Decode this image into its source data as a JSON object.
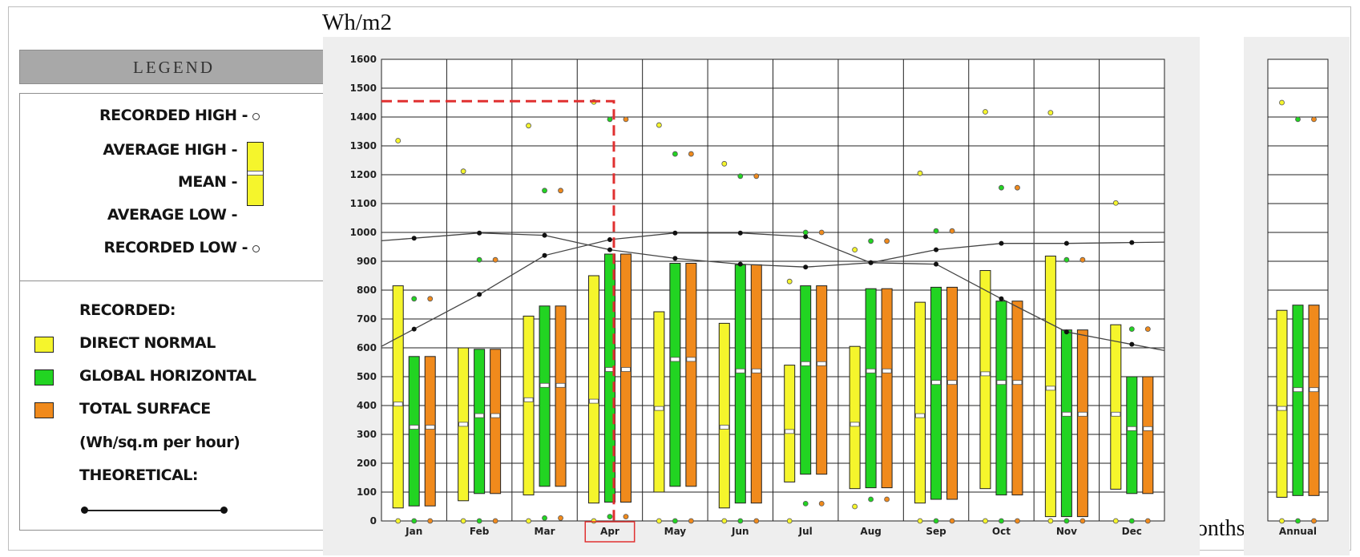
{
  "unit_label": "Wh/m2",
  "xlabel": "Months",
  "legend": {
    "title": "LEGEND",
    "recorded_high": "RECORDED HIGH -",
    "average_high": "AVERAGE HIGH -",
    "mean": "MEAN -",
    "average_low": "AVERAGE LOW -",
    "recorded_low": "RECORDED LOW -",
    "recorded_heading": "RECORDED:",
    "direct_normal": "DIRECT NORMAL",
    "global_horizontal": "GLOBAL HORIZONTAL",
    "total_surface": "TOTAL SURFACE",
    "units_note": "(Wh/sq.m per hour)",
    "theoretical": "THEORETICAL:"
  },
  "colors": {
    "direct_normal": "#f5f52c",
    "global_horizontal": "#22d422",
    "total_surface": "#f08a1c",
    "highlight": "#e03030",
    "panel_bg": "#eeeeee"
  },
  "chart_data": {
    "type": "bar",
    "ylim": [
      0,
      1600
    ],
    "yticks": [
      "0",
      "100",
      "200",
      "300",
      "400",
      "500",
      "600",
      "700",
      "800",
      "900",
      "1000",
      "1100",
      "1200",
      "1300",
      "1400",
      "1500",
      "1600"
    ],
    "categories": [
      "Jan",
      "Feb",
      "Mar",
      "Apr",
      "May",
      "Jun",
      "Jul",
      "Aug",
      "Sep",
      "Oct",
      "Nov",
      "Dec"
    ],
    "annual_category": "Annual",
    "highlighted_category": "Apr",
    "highlight_level": 1455,
    "series": [
      {
        "name": "DIRECT NORMAL",
        "color": "#f5f52c",
        "avg_high": [
          815,
          600,
          710,
          850,
          725,
          685,
          540,
          605,
          758,
          868,
          918,
          680
        ],
        "mean": [
          405,
          335,
          420,
          415,
          390,
          325,
          310,
          335,
          365,
          510,
          460,
          370
        ],
        "avg_low": [
          45,
          70,
          90,
          62,
          100,
          45,
          135,
          112,
          62,
          112,
          15,
          110
        ],
        "rec_high": [
          1318,
          1212,
          1370,
          1452,
          1372,
          1238,
          830,
          940,
          1205,
          1418,
          1415,
          1102
        ],
        "rec_low": [
          0,
          0,
          0,
          0,
          0,
          0,
          0,
          50,
          0,
          0,
          0,
          0
        ],
        "annual": {
          "avg_high": 730,
          "mean": 390,
          "avg_low": 82,
          "rec_high": 1450,
          "rec_low": 0
        }
      },
      {
        "name": "GLOBAL HORIZONTAL",
        "color": "#22d422",
        "avg_high": [
          570,
          595,
          745,
          925,
          893,
          888,
          815,
          805,
          810,
          762,
          662,
          500
        ],
        "mean": [
          325,
          365,
          470,
          525,
          560,
          520,
          545,
          520,
          480,
          480,
          370,
          320
        ],
        "avg_low": [
          52,
          95,
          120,
          65,
          120,
          62,
          162,
          115,
          75,
          90,
          15,
          95
        ],
        "rec_high": [
          770,
          905,
          1145,
          1392,
          1272,
          1195,
          1000,
          970,
          1005,
          1155,
          905,
          665
        ],
        "rec_low": [
          0,
          0,
          10,
          15,
          0,
          0,
          60,
          75,
          0,
          0,
          0,
          0
        ],
        "annual": {
          "avg_high": 748,
          "mean": 455,
          "avg_low": 88,
          "rec_high": 1392,
          "rec_low": 0
        }
      },
      {
        "name": "TOTAL SURFACE",
        "color": "#f08a1c",
        "avg_high": [
          570,
          595,
          745,
          925,
          893,
          888,
          815,
          805,
          810,
          762,
          662,
          500
        ],
        "mean": [
          325,
          365,
          470,
          525,
          560,
          520,
          545,
          520,
          480,
          480,
          370,
          320
        ],
        "avg_low": [
          52,
          95,
          120,
          65,
          120,
          62,
          162,
          115,
          75,
          90,
          15,
          95
        ],
        "rec_high": [
          770,
          905,
          1145,
          1392,
          1272,
          1195,
          1000,
          970,
          1005,
          1155,
          905,
          665
        ],
        "rec_low": [
          0,
          0,
          10,
          15,
          0,
          0,
          60,
          75,
          0,
          0,
          0,
          0
        ],
        "annual": {
          "avg_high": 748,
          "mean": 455,
          "avg_low": 88,
          "rec_high": 1392,
          "rec_low": 0
        }
      }
    ],
    "theoretical": [
      {
        "name": "theoretical-direct-normal",
        "values": [
          980,
          998,
          990,
          940,
          910,
          890,
          880,
          895,
          940,
          962,
          962,
          965
        ]
      },
      {
        "name": "theoretical-global-horizontal",
        "values": [
          665,
          785,
          920,
          975,
          998,
          998,
          985,
          895,
          890,
          770,
          655,
          612
        ]
      }
    ]
  }
}
